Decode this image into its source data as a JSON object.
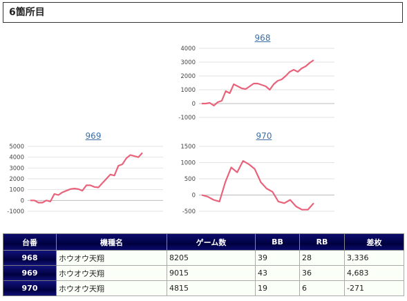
{
  "page": {
    "title": "6箇所目"
  },
  "charts": [
    {
      "id": "968",
      "chart_data": {
        "type": "line",
        "title": "968",
        "ylim": [
          -1000,
          4000
        ],
        "yticks": [
          "4000",
          "3000",
          "2000",
          "1000",
          "0",
          "-1000"
        ],
        "series": [
          {
            "values": [
              0,
              0,
              50,
              -150,
              100,
              200,
              900,
              750,
              1400,
              1250,
              1100,
              1050,
              1250,
              1450,
              1450,
              1350,
              1250,
              1000,
              1400,
              1650,
              1750,
              2000,
              2300,
              2450,
              2300,
              2550,
              2700,
              2950,
              3150
            ]
          }
        ]
      }
    },
    {
      "id": "969",
      "chart_data": {
        "type": "line",
        "title": "969",
        "ylim": [
          -1000,
          5000
        ],
        "yticks": [
          "5000",
          "4000",
          "3000",
          "2000",
          "1000",
          "0",
          "-1000"
        ],
        "series": [
          {
            "values": [
              0,
              0,
              -200,
              -200,
              0,
              -100,
              600,
              500,
              750,
              900,
              1050,
              1100,
              1050,
              900,
              1400,
              1400,
              1250,
              1200,
              1600,
              2000,
              2400,
              2300,
              3200,
              3350,
              3900,
              4200,
              4100,
              4000,
              4400
            ]
          }
        ]
      }
    },
    {
      "id": "970",
      "chart_data": {
        "type": "line",
        "title": "970",
        "ylim": [
          -500,
          1500
        ],
        "yticks": [
          "1500",
          "1000",
          "500",
          "0",
          "-500"
        ],
        "series": [
          {
            "values": [
              0,
              -50,
              -150,
              -200,
              400,
              850,
              700,
              1050,
              950,
              800,
              400,
              200,
              100,
              -200,
              -250,
              -150,
              -350,
              -450,
              -450,
              -250
            ]
          }
        ]
      }
    }
  ],
  "table": {
    "headers": [
      "台番",
      "機種名",
      "ゲーム数",
      "BB",
      "RB",
      "差枚"
    ],
    "rows": [
      {
        "num": "968",
        "name": "ホウオウ天翔",
        "games": "8205",
        "bb": "39",
        "rb": "28",
        "diff": "3,336"
      },
      {
        "num": "969",
        "name": "ホウオウ天翔",
        "games": "9015",
        "bb": "43",
        "rb": "36",
        "diff": "4,683"
      },
      {
        "num": "970",
        "name": "ホウオウ天翔",
        "games": "4815",
        "bb": "19",
        "rb": "6",
        "diff": "-271"
      }
    ]
  },
  "colors": {
    "line": "#e8627a",
    "grid": "#e2e2e2",
    "header_bg": "#000040",
    "negative": "#d00000"
  }
}
